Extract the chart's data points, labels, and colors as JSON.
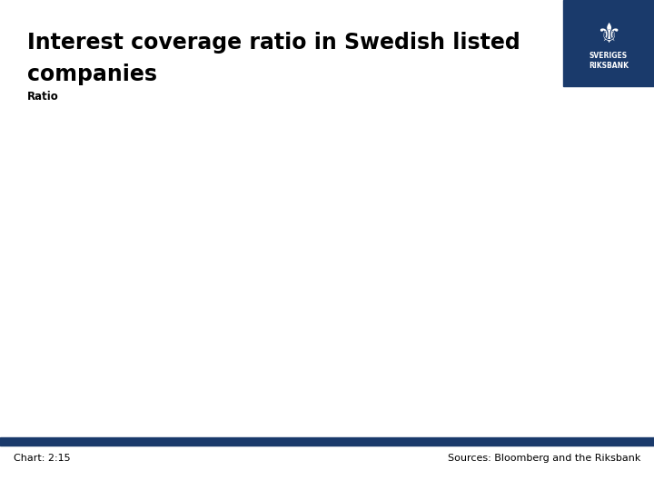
{
  "title_line1": "Interest coverage ratio in Swedish listed",
  "title_line2": "companies",
  "subtitle": "Ratio",
  "footer_left": "Chart: 2:15",
  "footer_right": "Sources: Bloomberg and the Riksbank",
  "background_color": "#ffffff",
  "footer_bar_color": "#1a3a6b",
  "logo_bg_color": "#1a3a6b",
  "title_fontsize": 17,
  "subtitle_fontsize": 8.5,
  "footer_fontsize": 8,
  "footer_text_color": "#000000",
  "title_color": "#000000",
  "subtitle_color": "#000000"
}
